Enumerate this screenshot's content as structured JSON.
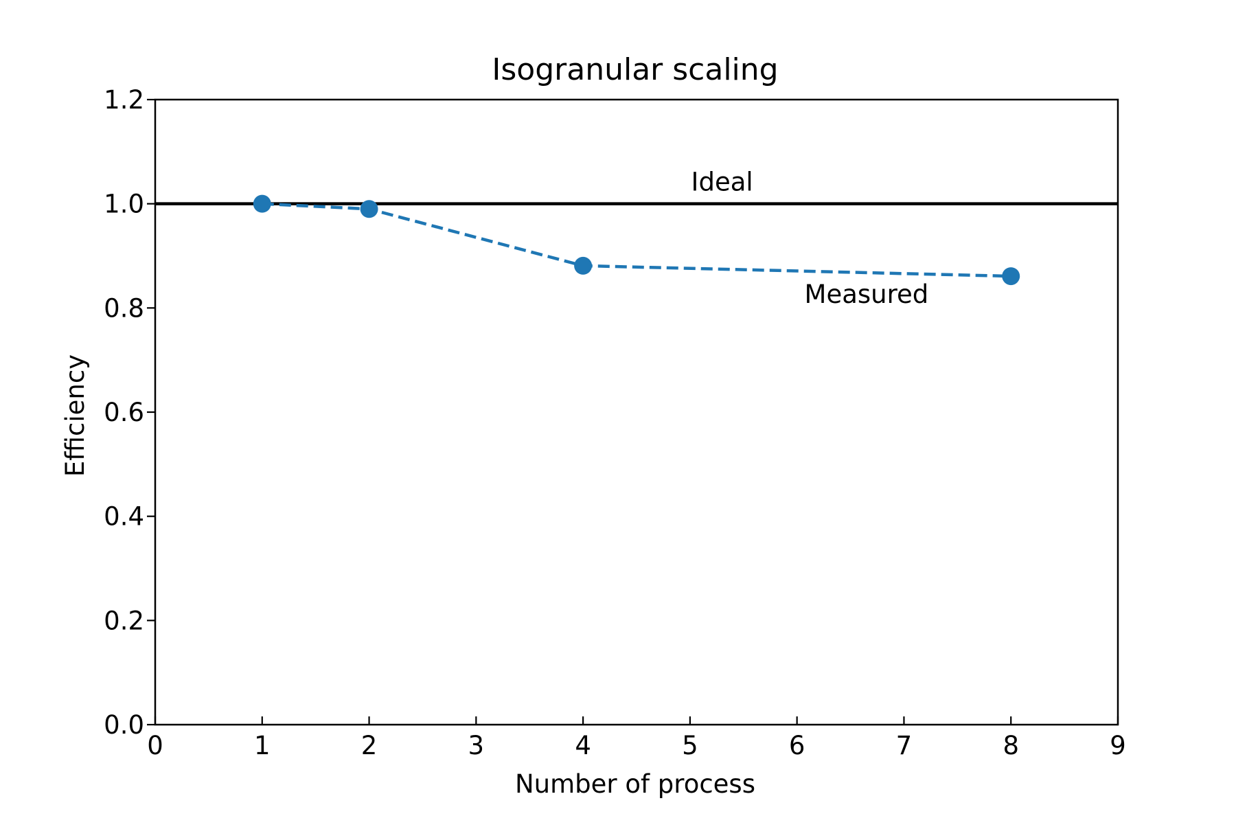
{
  "chart_data": {
    "type": "line",
    "title": "Isogranular scaling",
    "xlabel": "Number of process",
    "ylabel": "Efficiency",
    "xlim": [
      0,
      9
    ],
    "ylim": [
      0.0,
      1.2
    ],
    "xticks": [
      0,
      1,
      2,
      3,
      4,
      5,
      6,
      7,
      8,
      9
    ],
    "yticks": [
      0.0,
      0.2,
      0.4,
      0.6,
      0.8,
      1.0,
      1.2
    ],
    "xtick_labels": [
      "0",
      "1",
      "2",
      "3",
      "4",
      "5",
      "6",
      "7",
      "8",
      "9"
    ],
    "ytick_labels": [
      "0.0",
      "0.2",
      "0.4",
      "0.6",
      "0.8",
      "1.0",
      "1.2"
    ],
    "grid": false,
    "series": [
      {
        "name": "Ideal",
        "style": "solid",
        "color": "#000000",
        "x": [
          0,
          9
        ],
        "y": [
          1.0,
          1.0
        ]
      },
      {
        "name": "Measured",
        "style": "dashed",
        "markers": true,
        "color": "#1f77b4",
        "x": [
          1,
          2,
          4,
          8
        ],
        "y": [
          1.0,
          0.99,
          0.881,
          0.861
        ]
      }
    ],
    "annotations": [
      {
        "text": "Ideal",
        "x": 5.3,
        "y": 1.025
      },
      {
        "text": "Measured",
        "x": 6.65,
        "y": 0.81
      }
    ]
  }
}
